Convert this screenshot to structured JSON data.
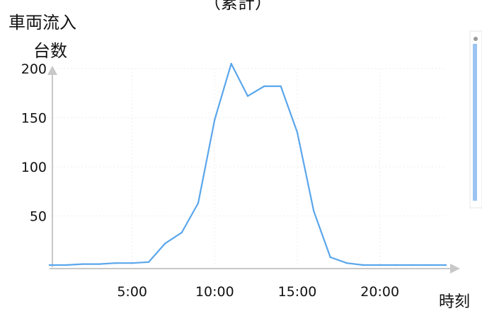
{
  "chart_data": {
    "type": "line",
    "title": "（累計）",
    "ylabel_line1": "車両流入",
    "ylabel_line2": "台数",
    "xlabel": "時刻",
    "xlim": [
      0,
      24
    ],
    "ylim": [
      0,
      200
    ],
    "x_ticks": [
      {
        "value": 5,
        "label": "5:00"
      },
      {
        "value": 10,
        "label": "10:00"
      },
      {
        "value": 15,
        "label": "15:00"
      },
      {
        "value": 20,
        "label": "20:00"
      }
    ],
    "y_ticks": [
      {
        "value": 50,
        "label": "50"
      },
      {
        "value": 100,
        "label": "100"
      },
      {
        "value": 150,
        "label": "150"
      },
      {
        "value": 200,
        "label": "200"
      }
    ],
    "grid": true,
    "series": [
      {
        "color": "#5aa6ec",
        "points": [
          {
            "x": 0,
            "y": 0
          },
          {
            "x": 1,
            "y": 0
          },
          {
            "x": 2,
            "y": 1
          },
          {
            "x": 3,
            "y": 1
          },
          {
            "x": 4,
            "y": 2
          },
          {
            "x": 5,
            "y": 2
          },
          {
            "x": 6,
            "y": 3
          },
          {
            "x": 7,
            "y": 22
          },
          {
            "x": 8,
            "y": 33
          },
          {
            "x": 9,
            "y": 63
          },
          {
            "x": 10,
            "y": 148
          },
          {
            "x": 11,
            "y": 205
          },
          {
            "x": 12,
            "y": 172
          },
          {
            "x": 13,
            "y": 182
          },
          {
            "x": 14,
            "y": 182
          },
          {
            "x": 15,
            "y": 135
          },
          {
            "x": 16,
            "y": 55
          },
          {
            "x": 17,
            "y": 8
          },
          {
            "x": 18,
            "y": 2
          },
          {
            "x": 19,
            "y": 0
          },
          {
            "x": 20,
            "y": 0
          },
          {
            "x": 21,
            "y": 0
          },
          {
            "x": 22,
            "y": 0
          },
          {
            "x": 23,
            "y": 0
          },
          {
            "x": 24,
            "y": 0
          }
        ]
      }
    ],
    "colors": {
      "line": "#5aa6ec",
      "axis": "#c8c8c8",
      "grid": "#eeeeee",
      "side_bar": "#9cc4f2"
    }
  }
}
